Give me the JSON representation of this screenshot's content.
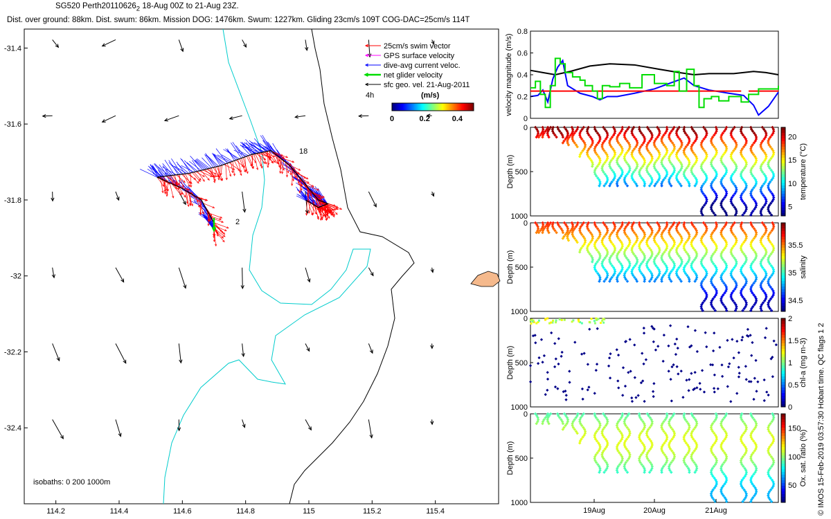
{
  "header": {
    "title_prefix": "SG520 Perth20110626",
    "title_sub": "2",
    "title_suffix": " 18-Aug 00Z to 21-Aug 23Z.",
    "stats": "Dist. over ground: 88km. Dist. swum: 86km. Mission DOG: 1476km. Swum: 1227km. Gliding 23cm/s 109T COG-DAC=25cm/s 114T"
  },
  "credit": "© IMOS 15-Feb-2019 03:57:30 Hobart time. QC flags 1  2",
  "colors": {
    "swim": "#ff0000",
    "gps": "#ff00ff",
    "dac": "#0000ff",
    "net": "#00dd00",
    "sfc": "#000000",
    "isobath": "#00cccc",
    "coast": "#000000",
    "land": "#f5b98c"
  },
  "chart_data": [
    {
      "type": "scatter",
      "subtype": "map-quiver",
      "xlim": [
        114.1,
        115.6
      ],
      "ylim": [
        -32.6,
        -31.35
      ],
      "x_ticks": [
        "114.2",
        "114.4",
        "114.6",
        "114.8",
        "115",
        "115.2",
        "115.4"
      ],
      "y_ticks": [
        "-31.4",
        "-31.6",
        "-31.8",
        "-32",
        "-32.2",
        "-32.4"
      ],
      "legend": [
        {
          "label": "25cm/s swim vector",
          "color": "#ff0000"
        },
        {
          "label": "GPS surface velocity",
          "color": "#ff00ff"
        },
        {
          "label": "dive-avg current veloc.",
          "color": "#0000ff"
        },
        {
          "label": "net glider velocity",
          "color": "#00dd00"
        },
        {
          "label": "sfc geo. vel. 21-Aug-2011",
          "color": "#000000"
        }
      ],
      "colorbar": {
        "label": "(m/s)",
        "ticks": [
          "0",
          "0.2",
          "0.4"
        ],
        "range": [
          0,
          0.5
        ]
      },
      "legend_extra": "4h",
      "isobath_label": "isobaths: 0   200  1000m",
      "track_labels": [
        "18",
        "2"
      ],
      "track": [
        [
          114.52,
          -31.74
        ],
        [
          114.62,
          -31.73
        ],
        [
          114.72,
          -31.71
        ],
        [
          114.82,
          -31.68
        ],
        [
          114.88,
          -31.67
        ],
        [
          114.94,
          -31.71
        ],
        [
          114.99,
          -31.76
        ],
        [
          115.03,
          -31.8
        ],
        [
          115.06,
          -31.81
        ],
        [
          115.03,
          -31.82
        ],
        [
          114.99,
          -31.8
        ]
      ],
      "track_leg2": [
        [
          114.52,
          -31.74
        ],
        [
          114.6,
          -31.77
        ],
        [
          114.66,
          -31.8
        ],
        [
          114.7,
          -31.86
        ],
        [
          114.7,
          -31.88
        ]
      ]
    },
    {
      "type": "line",
      "ylabel": "velocity magnitude (m/s)",
      "ylim": [
        0,
        0.8
      ],
      "y_ticks": [
        "0",
        "0.2",
        "0.4",
        "0.6",
        "0.8"
      ],
      "series": [
        {
          "color": "#000000",
          "points": [
            [
              0.0,
              0.44
            ],
            [
              0.05,
              0.42
            ],
            [
              0.1,
              0.4
            ],
            [
              0.16,
              0.43
            ],
            [
              0.24,
              0.48
            ],
            [
              0.32,
              0.5
            ],
            [
              0.42,
              0.49
            ],
            [
              0.52,
              0.45
            ],
            [
              0.6,
              0.42
            ],
            [
              0.66,
              0.4
            ],
            [
              0.72,
              0.41
            ],
            [
              0.82,
              0.41
            ],
            [
              0.9,
              0.43
            ],
            [
              0.95,
              0.42
            ],
            [
              1.0,
              0.4
            ]
          ]
        },
        {
          "color": "#0000ff",
          "points": [
            [
              0.0,
              0.2
            ],
            [
              0.03,
              0.21
            ],
            [
              0.05,
              0.26
            ],
            [
              0.07,
              0.15
            ],
            [
              0.09,
              0.36
            ],
            [
              0.11,
              0.47
            ],
            [
              0.13,
              0.53
            ],
            [
              0.15,
              0.3
            ],
            [
              0.2,
              0.23
            ],
            [
              0.25,
              0.2
            ],
            [
              0.28,
              0.17
            ],
            [
              0.31,
              0.2
            ],
            [
              0.35,
              0.2
            ],
            [
              0.42,
              0.23
            ],
            [
              0.5,
              0.27
            ],
            [
              0.56,
              0.32
            ],
            [
              0.62,
              0.37
            ],
            [
              0.66,
              0.3
            ],
            [
              0.72,
              0.26
            ],
            [
              0.8,
              0.23
            ],
            [
              0.86,
              0.21
            ],
            [
              0.9,
              0.12
            ],
            [
              0.92,
              0.03
            ],
            [
              0.96,
              0.11
            ],
            [
              1.0,
              0.24
            ]
          ]
        },
        {
          "color": "#ff0000",
          "points": [
            [
              0.0,
              0.25
            ],
            [
              0.85,
              0.25
            ],
            [
              0.87,
              null
            ],
            [
              0.88,
              0.25
            ],
            [
              1.0,
              0.25
            ]
          ]
        }
      ],
      "net_points": [
        [
          0.0,
          0.28
        ],
        [
          0.02,
          0.34
        ],
        [
          0.04,
          0.22
        ],
        [
          0.06,
          0.1
        ],
        [
          0.08,
          0.3
        ],
        [
          0.1,
          0.55
        ],
        [
          0.12,
          0.5
        ],
        [
          0.14,
          0.42
        ],
        [
          0.17,
          0.38
        ],
        [
          0.2,
          0.35
        ],
        [
          0.22,
          0.3
        ],
        [
          0.25,
          0.25
        ],
        [
          0.27,
          0.18
        ],
        [
          0.29,
          0.3
        ],
        [
          0.32,
          0.29
        ],
        [
          0.36,
          0.32
        ],
        [
          0.4,
          0.28
        ],
        [
          0.45,
          0.4
        ],
        [
          0.5,
          0.32
        ],
        [
          0.55,
          0.3
        ],
        [
          0.58,
          0.43
        ],
        [
          0.6,
          0.25
        ],
        [
          0.63,
          0.45
        ],
        [
          0.66,
          0.3
        ],
        [
          0.68,
          0.1
        ],
        [
          0.7,
          0.18
        ],
        [
          0.73,
          0.2
        ],
        [
          0.76,
          0.16
        ],
        [
          0.8,
          0.2
        ],
        [
          0.85,
          0.15
        ],
        [
          0.88,
          0.22
        ],
        [
          0.92,
          0.27
        ],
        [
          0.96,
          0.27
        ],
        [
          1.0,
          0.3
        ]
      ]
    },
    {
      "type": "scatter",
      "ylabel": "Depth (m)",
      "cbar_label": "temperature (°C)",
      "ylim": [
        0,
        1000
      ],
      "y_ticks": [
        "0",
        "500",
        "1000"
      ],
      "cbar_ticks": [
        "20",
        "15",
        "10",
        "5"
      ],
      "cbar_range": [
        3,
        22
      ],
      "variable": "temperature",
      "profiles": [
        0.02,
        0.04,
        0.06,
        0.08,
        0.1,
        0.12,
        0.14,
        0.16,
        0.18,
        0.21,
        0.24,
        0.27,
        0.3,
        0.33,
        0.36,
        0.39,
        0.42,
        0.45,
        0.48,
        0.51,
        0.54,
        0.57,
        0.6,
        0.63,
        0.66,
        0.7,
        0.74,
        0.78,
        0.82,
        0.86,
        0.9,
        0.94,
        0.97
      ],
      "max_depths": [
        120,
        120,
        120,
        120,
        120,
        120,
        180,
        200,
        220,
        350,
        450,
        680,
        680,
        680,
        680,
        680,
        680,
        680,
        680,
        680,
        680,
        680,
        680,
        680,
        680,
        1000,
        1000,
        1000,
        1000,
        1000,
        1000,
        1000,
        1000
      ]
    },
    {
      "type": "scatter",
      "ylabel": "Depth (m)",
      "cbar_label": "salinity",
      "ylim": [
        0,
        1000
      ],
      "y_ticks": [
        "0",
        "500",
        "1000"
      ],
      "cbar_ticks": [
        "35.5",
        "35",
        "34.5"
      ],
      "cbar_range": [
        34.3,
        35.9
      ],
      "variable": "salinity"
    },
    {
      "type": "scatter",
      "ylabel": "Depth (m)",
      "cbar_label": "chl-a (mg m-3)",
      "ylim": [
        0,
        1000
      ],
      "y_ticks": [
        "0",
        "500",
        "1000"
      ],
      "cbar_ticks": [
        "2",
        "1.5",
        "1",
        "0.5",
        "0"
      ],
      "cbar_range": [
        0,
        2
      ],
      "variable": "chl"
    },
    {
      "type": "scatter",
      "ylabel": "Depth (m)",
      "cbar_label": "Ox. sat. ratio (%)",
      "ylim": [
        0,
        1000
      ],
      "y_ticks": [
        "0",
        "500",
        "1000"
      ],
      "cbar_ticks": [
        "150",
        "100",
        "50"
      ],
      "cbar_range": [
        20,
        175
      ],
      "variable": "oxygen",
      "x_ticks": [
        "19Aug",
        "20Aug",
        "21Aug"
      ]
    }
  ]
}
